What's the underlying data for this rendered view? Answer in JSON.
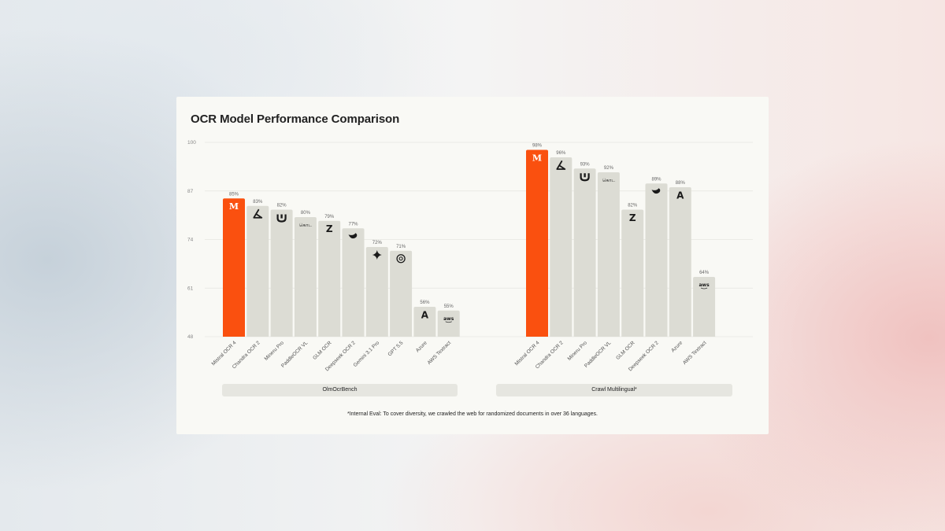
{
  "chart_data": {
    "type": "bar",
    "title": "OCR Model Performance Comparison",
    "footnote": "*Internal Eval: To cover diversity, we crawled the web for randomized documents in over 36 languages.",
    "y_ticks": [
      100,
      87,
      74,
      61,
      48
    ],
    "ylim": [
      48,
      100
    ],
    "grid": true,
    "highlight_color": "#fa500f",
    "bar_color": "#dcdcd4",
    "groups": [
      {
        "name": "OlmOcrBench",
        "categories": [
          "Mistral OCR 4",
          "Chandra OCR 2",
          "Mineru Pro",
          "PaddleOCR VL",
          "GLM OCR",
          "Deepseek OCR 2",
          "Gemini 3.1 Pro",
          "GPT 5.5",
          "Azure",
          "AWS Textract"
        ],
        "values": [
          85,
          83,
          82,
          80,
          79,
          77,
          72,
          71,
          56,
          55
        ],
        "labels": [
          "85%",
          "83%",
          "82%",
          "80%",
          "79%",
          "77%",
          "72%",
          "71%",
          "56%",
          "55%"
        ],
        "icons": [
          "mistral-icon",
          "chandra-icon",
          "mineru-icon",
          "paddle-icon",
          "glm-icon",
          "deepseek-icon",
          "gemini-icon",
          "openai-icon",
          "azure-icon",
          "aws-icon"
        ]
      },
      {
        "name": "Crawl Multilingual*",
        "categories": [
          "Mistral OCR 4",
          "Chandra OCR 2",
          "Mineru Pro",
          "PaddleOCR VL",
          "GLM OCR",
          "Deepseek OCR 2",
          "Azure",
          "AWS Textract"
        ],
        "values": [
          98,
          96,
          93,
          92,
          82,
          89,
          88,
          64
        ],
        "labels": [
          "98%",
          "96%",
          "93%",
          "92%",
          "82%",
          "89%",
          "88%",
          "64%"
        ],
        "icons": [
          "mistral-icon",
          "chandra-icon",
          "mineru-icon",
          "paddle-icon",
          "glm-icon",
          "deepseek-icon",
          "azure-icon",
          "aws-icon"
        ]
      }
    ]
  }
}
